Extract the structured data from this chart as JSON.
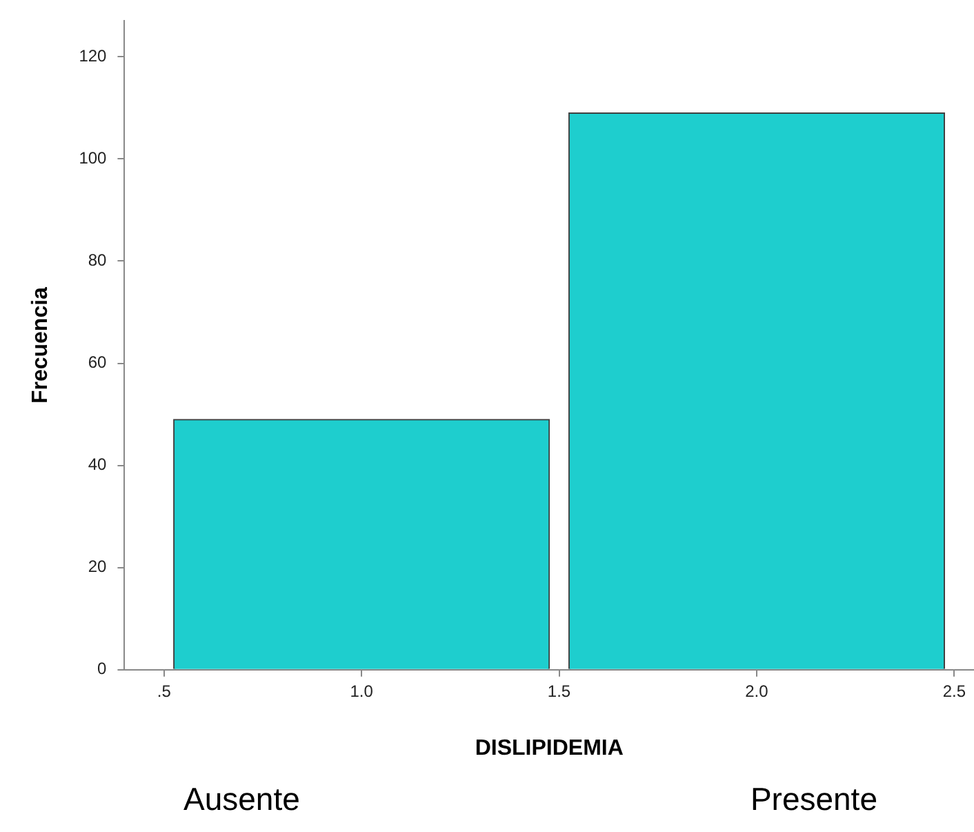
{
  "chart_data": {
    "type": "histogram",
    "xlabel": "DISLIPIDEMIA",
    "ylabel": "Frecuencia",
    "bins": [
      0.5,
      1.5,
      2.5
    ],
    "values": [
      49,
      109
    ],
    "color": "#1ecece",
    "xlim": [
      0.4,
      2.55
    ],
    "xticks": [
      {
        "value": 0.5,
        "label": ".5"
      },
      {
        "value": 1,
        "label": "1.0"
      },
      {
        "value": 1.5,
        "label": "1.5"
      },
      {
        "value": 2,
        "label": "2.0"
      },
      {
        "value": 2.5,
        "label": "2.5"
      }
    ],
    "ylim": [
      0,
      127
    ],
    "yticks": [
      0,
      20,
      40,
      60,
      80,
      100,
      120
    ],
    "grid": false,
    "annotations": [
      "Ausente",
      "Presente"
    ]
  }
}
